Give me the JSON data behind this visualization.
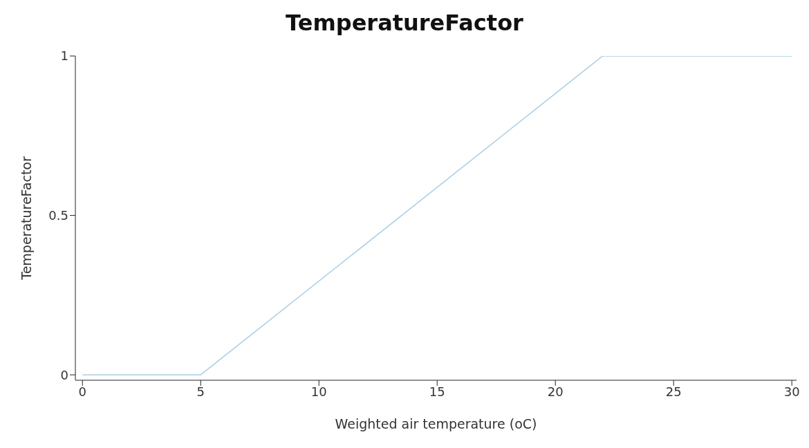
{
  "chart_data": {
    "type": "line",
    "title": "TemperatureFactor",
    "xlabel": "Weighted air temperature (oC)",
    "ylabel": "TemperatureFactor",
    "x": [
      0,
      5,
      22,
      30
    ],
    "series": [
      {
        "color": "#a6cee3",
        "values": [
          0,
          0,
          1,
          1
        ]
      }
    ],
    "xlim": [
      -0.3,
      30.2
    ],
    "xticks": [
      0,
      5,
      10,
      15,
      20,
      25,
      30
    ],
    "ylim": [
      -0.017,
      1
    ],
    "yticks": [
      0,
      0.5,
      1
    ],
    "grid": false,
    "legend": false,
    "marker": "none",
    "line_style": "solid"
  }
}
